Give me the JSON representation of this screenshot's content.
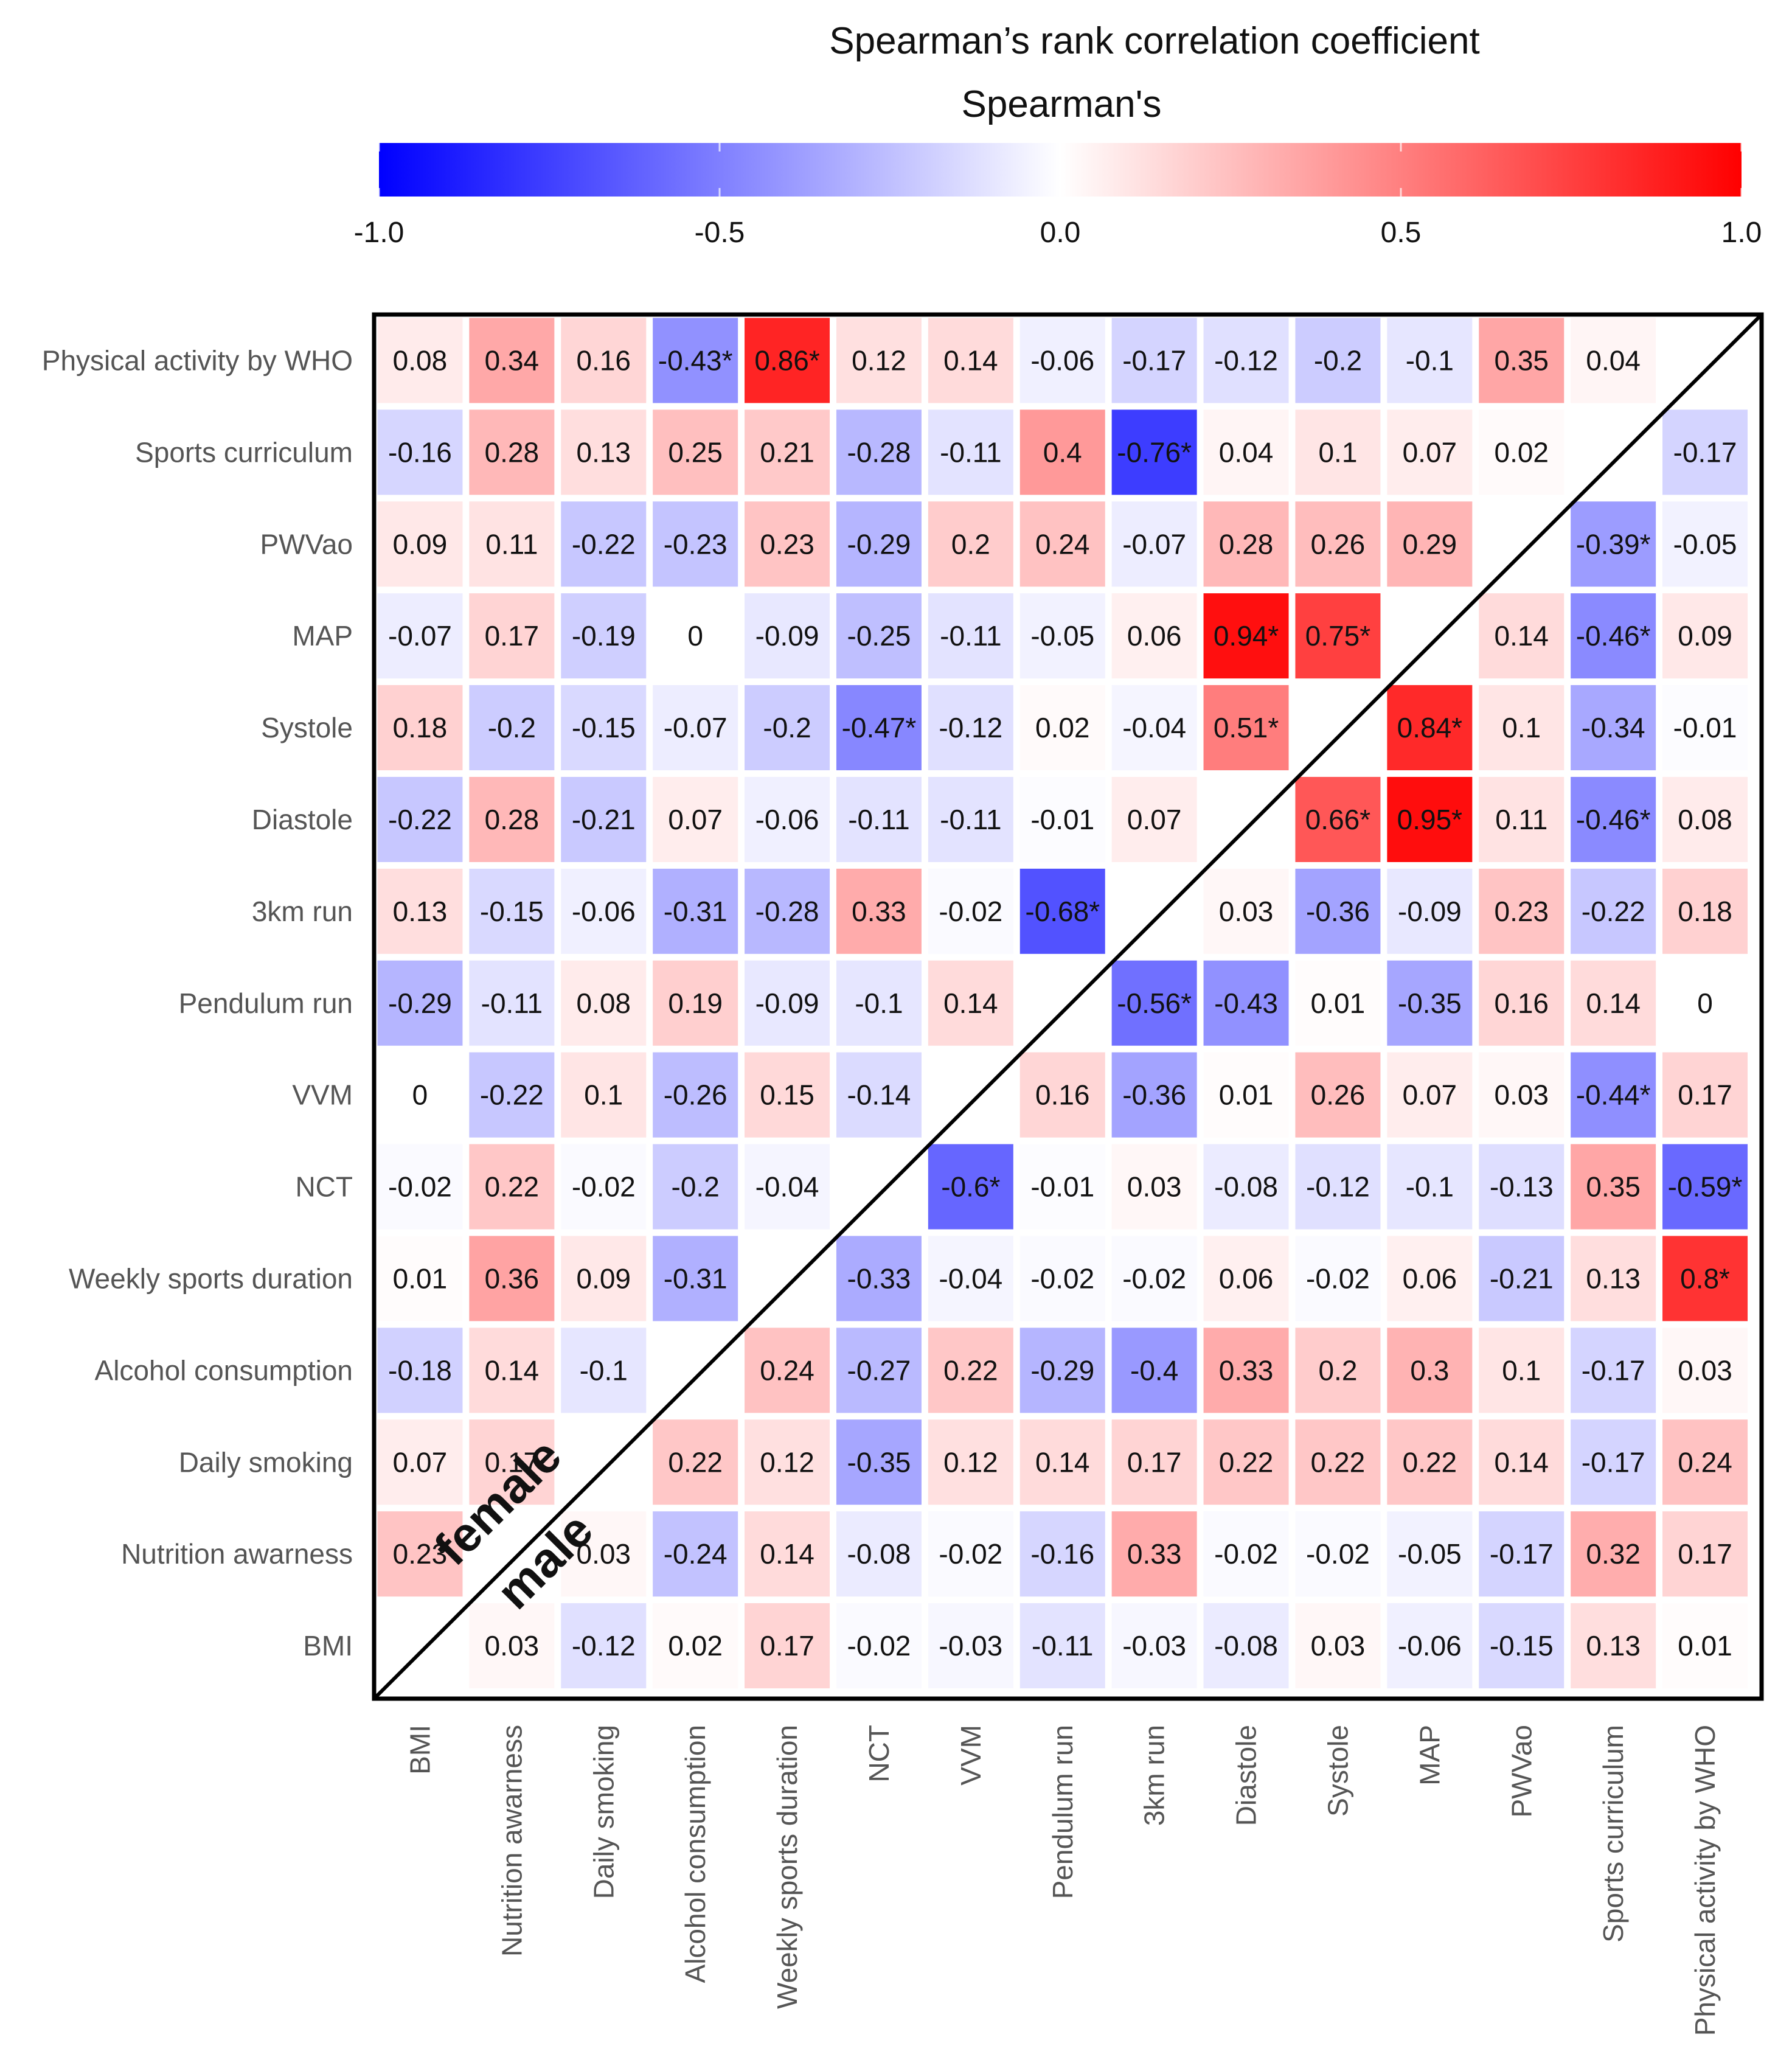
{
  "chart_data": {
    "type": "heatmap",
    "title": "Spearman’s rank correlation coefficient",
    "subtitle": "Spearman's",
    "colorbar": {
      "min": -1.0,
      "max": 1.0,
      "ticks": [
        "-1.0",
        "-0.5",
        "0.0",
        "0.5",
        "1.0"
      ],
      "low_color": "#0000ff",
      "mid_color": "#ffffff",
      "high_color": "#ff0000"
    },
    "triangle_labels": {
      "upper": "female",
      "lower": "male"
    },
    "rows": [
      "Physical activity by WHO",
      "Sports curriculum",
      "PWVao",
      "MAP",
      "Systole",
      "Diastole",
      "3km run",
      "Pendulum run",
      "VVM",
      "NCT",
      "Weekly sports duration",
      "Alcohol consumption",
      "Daily smoking",
      "Nutrition awarness",
      "BMI"
    ],
    "columns": [
      "BMI",
      "Nutrition awarness",
      "Daily smoking",
      "Alcohol consumption",
      "Weekly sports duration",
      "NCT",
      "VVM",
      "Pendulum run",
      "3km run",
      "Diastole",
      "Systole",
      "MAP",
      "PWVao",
      "Sports curriculum",
      "Physical activity by WHO"
    ],
    "values": [
      [
        "0.08",
        "0.34",
        "0.16",
        "-0.43*",
        "0.86*",
        "0.12",
        "0.14",
        "-0.06",
        "-0.17",
        "-0.12",
        "-0.2",
        "-0.1",
        "0.35",
        "0.04",
        null
      ],
      [
        "-0.16",
        "0.28",
        "0.13",
        "0.25",
        "0.21",
        "-0.28",
        "-0.11",
        "0.4",
        "-0.76*",
        "0.04",
        "0.1",
        "0.07",
        "0.02",
        null,
        "-0.17"
      ],
      [
        "0.09",
        "0.11",
        "-0.22",
        "-0.23",
        "0.23",
        "-0.29",
        "0.2",
        "0.24",
        "-0.07",
        "0.28",
        "0.26",
        "0.29",
        null,
        "-0.39*",
        "-0.05"
      ],
      [
        "-0.07",
        "0.17",
        "-0.19",
        "0",
        "-0.09",
        "-0.25",
        "-0.11",
        "-0.05",
        "0.06",
        "0.94*",
        "0.75*",
        null,
        "0.14",
        "-0.46*",
        "0.09"
      ],
      [
        "0.18",
        "-0.2",
        "-0.15",
        "-0.07",
        "-0.2",
        "-0.47*",
        "-0.12",
        "0.02",
        "-0.04",
        "0.51*",
        null,
        "0.84*",
        "0.1",
        "-0.34",
        "-0.01"
      ],
      [
        "-0.22",
        "0.28",
        "-0.21",
        "0.07",
        "-0.06",
        "-0.11",
        "-0.11",
        "-0.01",
        "0.07",
        null,
        "0.66*",
        "0.95*",
        "0.11",
        "-0.46*",
        "0.08"
      ],
      [
        "0.13",
        "-0.15",
        "-0.06",
        "-0.31",
        "-0.28",
        "0.33",
        "-0.02",
        "-0.68*",
        null,
        "0.03",
        "-0.36",
        "-0.09",
        "0.23",
        "-0.22",
        "0.18"
      ],
      [
        "-0.29",
        "-0.11",
        "0.08",
        "0.19",
        "-0.09",
        "-0.1",
        "0.14",
        null,
        "-0.56*",
        "-0.43",
        "0.01",
        "-0.35",
        "0.16",
        "0.14",
        "0"
      ],
      [
        "0",
        "-0.22",
        "0.1",
        "-0.26",
        "0.15",
        "-0.14",
        null,
        "0.16",
        "-0.36",
        "0.01",
        "0.26",
        "0.07",
        "0.03",
        "-0.44*",
        "0.17"
      ],
      [
        "-0.02",
        "0.22",
        "-0.02",
        "-0.2",
        "-0.04",
        null,
        "-0.6*",
        "-0.01",
        "0.03",
        "-0.08",
        "-0.12",
        "-0.1",
        "-0.13",
        "0.35",
        "-0.59*"
      ],
      [
        "0.01",
        "0.36",
        "0.09",
        "-0.31",
        null,
        "-0.33",
        "-0.04",
        "-0.02",
        "-0.02",
        "0.06",
        "-0.02",
        "0.06",
        "-0.21",
        "0.13",
        "0.8*"
      ],
      [
        "-0.18",
        "0.14",
        "-0.1",
        null,
        "0.24",
        "-0.27",
        "0.22",
        "-0.29",
        "-0.4",
        "0.33",
        "0.2",
        "0.3",
        "0.1",
        "-0.17",
        "0.03"
      ],
      [
        "0.07",
        "0.17",
        null,
        "0.22",
        "0.12",
        "-0.35",
        "0.12",
        "0.14",
        "0.17",
        "0.22",
        "0.22",
        "0.22",
        "0.14",
        "-0.17",
        "0.24"
      ],
      [
        "0.23",
        null,
        "0.03",
        "-0.24",
        "0.14",
        "-0.08",
        "-0.02",
        "-0.16",
        "0.33",
        "-0.02",
        "-0.02",
        "-0.05",
        "-0.17",
        "0.32",
        "0.17"
      ],
      [
        null,
        "0.03",
        "-0.12",
        "0.02",
        "0.17",
        "-0.02",
        "-0.03",
        "-0.11",
        "-0.03",
        "-0.08",
        "0.03",
        "-0.06",
        "-0.15",
        "0.13",
        "0.01"
      ]
    ]
  }
}
